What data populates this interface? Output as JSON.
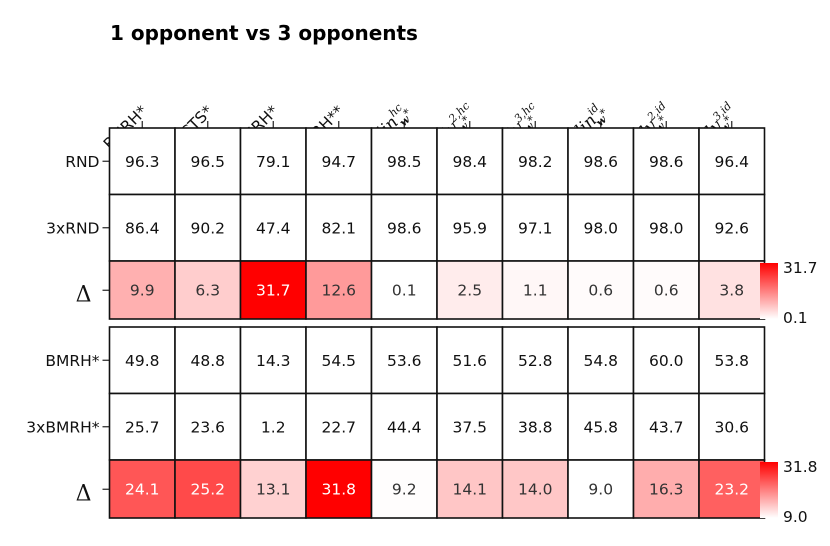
{
  "chart_data": {
    "type": "heatmap",
    "title": "1 opponent vs 3 opponents",
    "columns": [
      {
        "label": "BMRH*",
        "kind": "plain"
      },
      {
        "label": "MCTS*",
        "kind": "plain"
      },
      {
        "label": "SRH*",
        "kind": "plain"
      },
      {
        "label": "BMRH**",
        "kind": "plain"
      },
      {
        "label": "lin",
        "sup": "hc",
        "sub": "w",
        "subsup": "*",
        "kind": "math"
      },
      {
        "label": "poly",
        "sup": "2,hc",
        "sub": "w",
        "subsup": "*",
        "kind": "math"
      },
      {
        "label": "poly",
        "sup": "3,hc",
        "sub": "w",
        "subsup": "*",
        "kind": "math"
      },
      {
        "label": "lin",
        "sup": "id",
        "sub": "w",
        "subsup": "*",
        "kind": "math"
      },
      {
        "label": "poly",
        "sup": "2,id",
        "sub": "w",
        "subsup": "*",
        "kind": "math"
      },
      {
        "label": "poly",
        "sup": "3,id",
        "sub": "w",
        "subsup": "*",
        "kind": "math"
      }
    ],
    "blocks": [
      {
        "rows": [
          {
            "label": "RND",
            "values": [
              "96.3",
              "96.5",
              "79.1",
              "94.7",
              "98.5",
              "98.4",
              "98.2",
              "98.6",
              "98.6",
              "96.4"
            ]
          },
          {
            "label": "3xRND",
            "values": [
              "86.4",
              "90.2",
              "47.4",
              "82.1",
              "98.6",
              "95.9",
              "97.1",
              "98.0",
              "98.0",
              "92.6"
            ]
          }
        ],
        "delta": {
          "label": "Δ",
          "values": [
            9.9,
            6.3,
            31.7,
            12.6,
            0.1,
            2.5,
            1.1,
            0.6,
            0.6,
            3.8
          ],
          "vmin": 0.1,
          "vmax": 31.7
        },
        "colorbar": {
          "max_label": "31.7",
          "min_label": "0.1"
        }
      },
      {
        "rows": [
          {
            "label": "BMRH*",
            "values": [
              "49.8",
              "48.8",
              "14.3",
              "54.5",
              "53.6",
              "51.6",
              "52.8",
              "54.8",
              "60.0",
              "53.8"
            ]
          },
          {
            "label": "3xBMRH*",
            "values": [
              "25.7",
              "23.6",
              "1.2",
              "22.7",
              "44.4",
              "37.5",
              "38.8",
              "45.8",
              "43.7",
              "30.6"
            ]
          }
        ],
        "delta": {
          "label": "Δ",
          "values": [
            24.1,
            25.2,
            13.1,
            31.8,
            9.2,
            14.1,
            14.0,
            9.0,
            16.3,
            23.2
          ],
          "vmin": 9.0,
          "vmax": 31.8
        },
        "colorbar": {
          "max_label": "31.8",
          "min_label": "9.0"
        }
      }
    ],
    "colormap": {
      "low": "#ffffff",
      "high": "#ff0000"
    }
  }
}
